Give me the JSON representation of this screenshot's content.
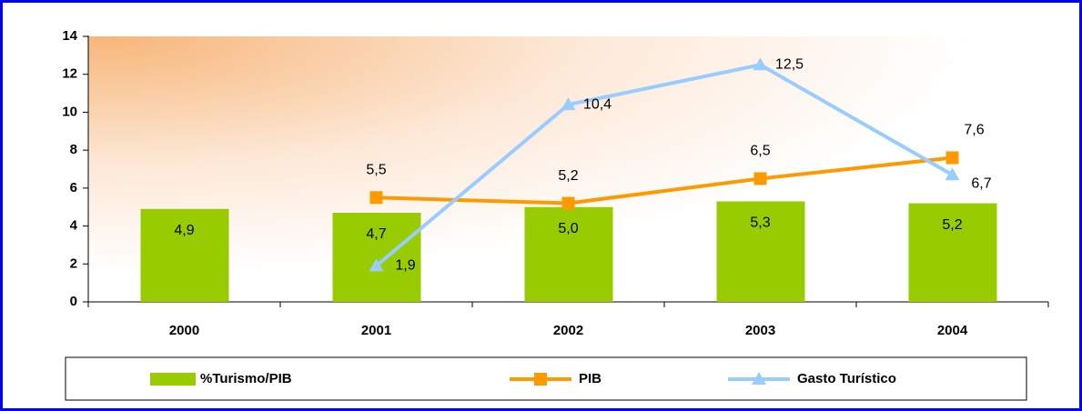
{
  "chart_data": {
    "type": "bar-line",
    "categories": [
      "2000",
      "2001",
      "2002",
      "2003",
      "2004"
    ],
    "ylim": [
      0,
      14
    ],
    "yticks": [
      0,
      2,
      4,
      6,
      8,
      10,
      12,
      14
    ],
    "grid": false,
    "series": [
      {
        "name": "%Turismo/PIB",
        "type": "bar",
        "color": "#99cc00",
        "values": [
          4.9,
          4.7,
          5.0,
          5.3,
          5.2
        ],
        "value_labels": [
          "4,9",
          "4,7",
          "5,0",
          "5,3",
          "5,2"
        ]
      },
      {
        "name": "PIB",
        "type": "line",
        "marker": "square",
        "color": "#ff9900",
        "values": [
          null,
          5.5,
          5.2,
          6.5,
          7.6
        ],
        "value_labels": [
          null,
          "5,5",
          "5,2",
          "6,5",
          "7,6"
        ]
      },
      {
        "name": "Gasto Turístico",
        "type": "line",
        "marker": "triangle",
        "color": "#99ccff",
        "values": [
          null,
          1.9,
          10.4,
          12.5,
          6.7
        ],
        "value_labels": [
          null,
          "1,9",
          "10,4",
          "12,5",
          "6,7"
        ]
      }
    ]
  }
}
